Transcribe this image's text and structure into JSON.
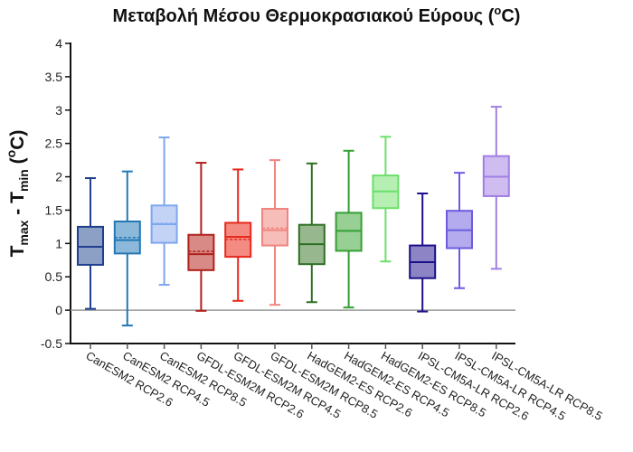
{
  "chart_data": {
    "type": "box",
    "title": "Μεταβολή Μέσου Θερμοκρασιακού Εύρους (",
    "title_sup": "o",
    "title_end": "C)",
    "ylabel": {
      "base": "T",
      "sub1": "max",
      "mid": " - T",
      "sub2": "min",
      "unit_open": " (",
      "unit_sup": "o",
      "unit_end": "C)"
    },
    "ylim": [
      -0.5,
      4
    ],
    "yticks": [
      "-0.5",
      "0",
      "0.5",
      "1",
      "1.5",
      "2",
      "2.5",
      "3",
      "3.5",
      "4"
    ],
    "ytick_values": [
      -0.5,
      0,
      0.5,
      1,
      1.5,
      2,
      2.5,
      3,
      3.5,
      4
    ],
    "reference_line": 0,
    "categories": [
      "CanESM2 RCP2.6",
      "CanESM2 RCP4.5",
      "CanESM2 RCP8.5",
      "GFDL-ESM2M RCP2.6",
      "GFDL-ESM2M RCP4.5",
      "GFDL-ESM2M RCP8.5",
      "HadGEM2-ES RCP2.6",
      "HadGEM2-ES RCP4.5",
      "HadGEM2-ES RCP8.5",
      "IPSL-CM5A-LR RCP2.6",
      "IPSL-CM5A-LR RCP4.5",
      "IPSL-CM5A-LR RCP8.5"
    ],
    "boxes": [
      {
        "min": 0.02,
        "q1": 0.68,
        "median": 0.95,
        "q3": 1.25,
        "max": 1.98,
        "mean": null,
        "color": "#1f3f8f",
        "fill": "#8c9fc4"
      },
      {
        "min": -0.23,
        "q1": 0.85,
        "median": 1.05,
        "q3": 1.33,
        "max": 2.08,
        "mean": 1.09,
        "color": "#2378b5",
        "fill": "#8cb9da"
      },
      {
        "min": 0.38,
        "q1": 1.01,
        "median": 1.29,
        "q3": 1.57,
        "max": 2.59,
        "mean": 1.3,
        "color": "#7da7ef",
        "fill": "#c2d3f6"
      },
      {
        "min": -0.01,
        "q1": 0.6,
        "median": 0.84,
        "q3": 1.13,
        "max": 2.21,
        "mean": 0.88,
        "color": "#b0201c",
        "fill": "#d78a86"
      },
      {
        "min": 0.14,
        "q1": 0.8,
        "median": 1.1,
        "q3": 1.31,
        "max": 2.11,
        "mean": 1.06,
        "color": "#e8281c",
        "fill": "#f38b83"
      },
      {
        "min": 0.08,
        "q1": 0.97,
        "median": 1.2,
        "q3": 1.52,
        "max": 2.25,
        "mean": 1.23,
        "color": "#f08580",
        "fill": "#f7bdb9"
      },
      {
        "min": 0.12,
        "q1": 0.69,
        "median": 0.99,
        "q3": 1.28,
        "max": 2.2,
        "mean": null,
        "color": "#2e6e22",
        "fill": "#97b78f"
      },
      {
        "min": 0.04,
        "q1": 0.89,
        "median": 1.19,
        "q3": 1.46,
        "max": 2.39,
        "mean": null,
        "color": "#34a033",
        "fill": "#98cf94"
      },
      {
        "min": 0.73,
        "q1": 1.53,
        "median": 1.78,
        "q3": 2.02,
        "max": 2.6,
        "mean": null,
        "color": "#6ddf6a",
        "fill": "#b5f0b2"
      },
      {
        "min": -0.02,
        "q1": 0.48,
        "median": 0.72,
        "q3": 0.97,
        "max": 1.75,
        "mean": null,
        "color": "#1c0f8a",
        "fill": "#8c84c4"
      },
      {
        "min": 0.33,
        "q1": 0.93,
        "median": 1.2,
        "q3": 1.49,
        "max": 2.06,
        "mean": null,
        "color": "#6b5ce0",
        "fill": "#b3abee"
      },
      {
        "min": 0.62,
        "q1": 1.71,
        "median": 2.0,
        "q3": 2.31,
        "max": 3.05,
        "mean": null,
        "color": "#a07fe3",
        "fill": "#cfbcf0"
      }
    ]
  }
}
